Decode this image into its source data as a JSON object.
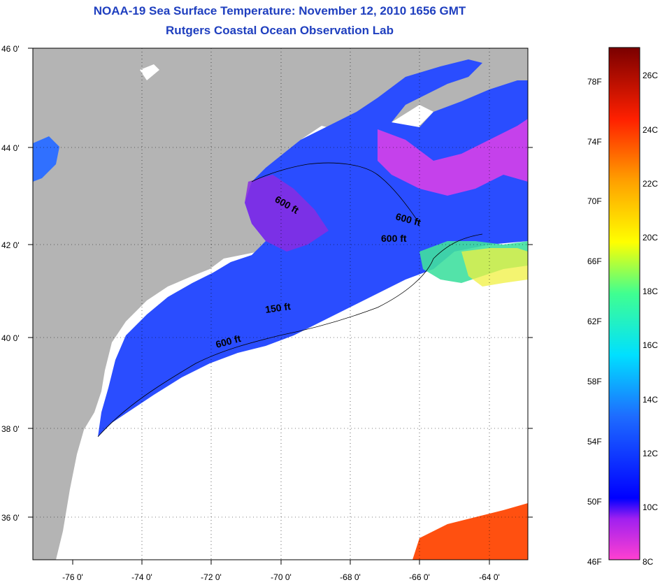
{
  "title": "NOAA-19 Sea Surface Temperature:  November 12, 2010 1656 GMT",
  "subtitle": "Rutgers Coastal Ocean Observation Lab",
  "axes": {
    "lat_labels": [
      "46 0'",
      "44 0'",
      "42 0'",
      "40 0'",
      "38 0'",
      "36 0'"
    ],
    "lon_labels": [
      "-76 0'",
      "-74 0'",
      "-72 0'",
      "-70 0'",
      "-68 0'",
      "-66 0'",
      "-64 0'"
    ]
  },
  "depth_contours": [
    {
      "label": "600 ft"
    },
    {
      "label": "600 ft"
    },
    {
      "label": "600 ft"
    },
    {
      "label": "150 ft"
    },
    {
      "label": "600 ft"
    }
  ],
  "colorbar": {
    "fahrenheit": [
      "78F",
      "74F",
      "70F",
      "66F",
      "62F",
      "58F",
      "54F",
      "50F",
      "46F"
    ],
    "celsius": [
      "26C",
      "24C",
      "22C",
      "20C",
      "18C",
      "16C",
      "14C",
      "12C",
      "10C",
      "8C"
    ]
  },
  "colors": {
    "land": "#b4b4b4",
    "no_data": "#ffffff",
    "title": "#1f3fbf"
  }
}
